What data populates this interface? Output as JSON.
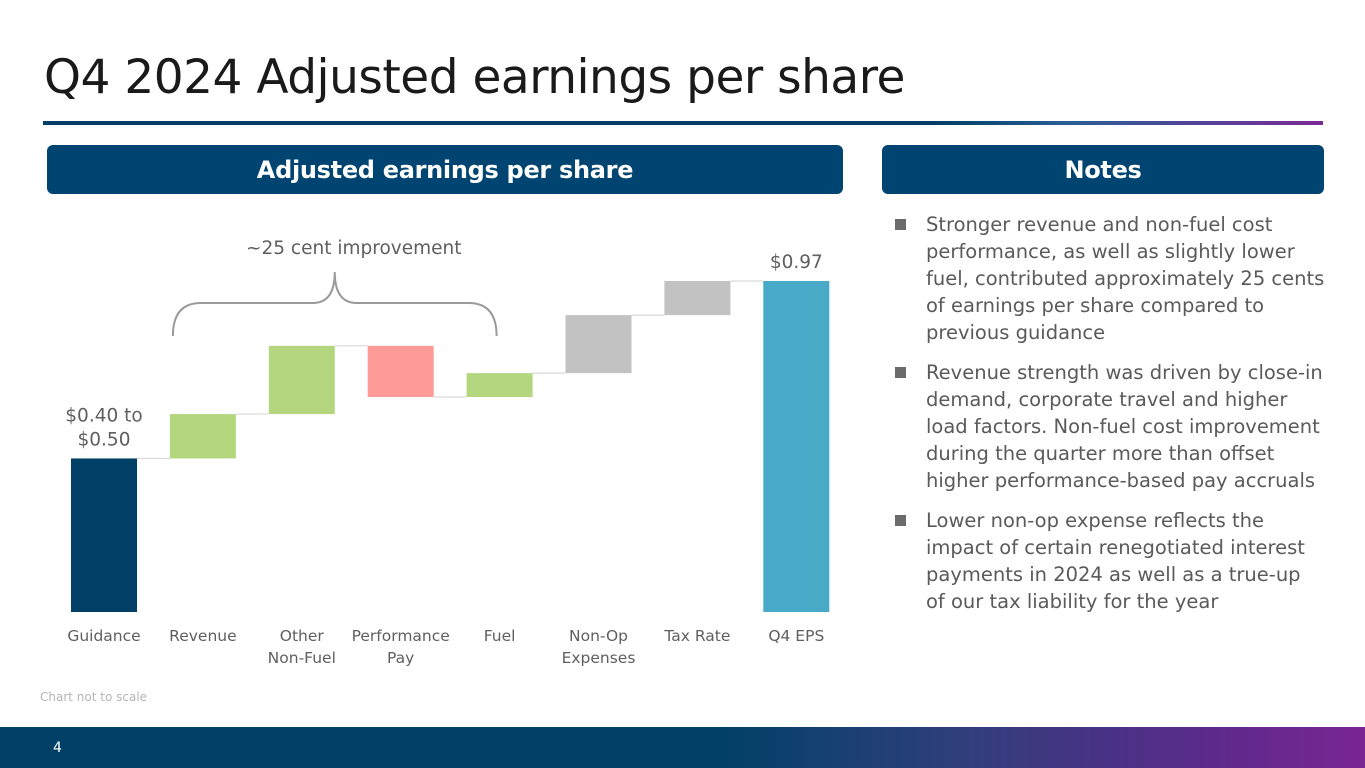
{
  "title": "Q4 2024 Adjusted earnings per share",
  "chart_header": "Adjusted earnings per share",
  "notes_header": "Notes",
  "notes": [
    "Stronger revenue and non-fuel cost performance, as well as slightly lower fuel, contributed approximately 25 cents of earnings per share compared to previous guidance",
    "Revenue strength was driven by close-in demand, corporate travel and higher load factors.  Non-fuel cost improvement during the quarter more than offset higher performance-based pay accruals",
    "Lower non-op expense reflects the impact of certain renegotiated interest payments in 2024 as well as a true-up of our tax liability for the year"
  ],
  "footnote": "Chart not to scale",
  "page_number": "4",
  "chart_data": {
    "type": "waterfall",
    "categories": [
      [
        "Guidance"
      ],
      [
        "Revenue"
      ],
      [
        "Other",
        "Non-Fuel"
      ],
      [
        "Performance",
        "Pay"
      ],
      [
        "Fuel"
      ],
      [
        "Non-Op",
        "Expenses"
      ],
      [
        "Tax Rate"
      ],
      [
        "Q4 EPS"
      ]
    ],
    "segments": [
      {
        "start": 0,
        "end": 0.45,
        "kind": "total"
      },
      {
        "start": 0.45,
        "end": 0.58,
        "kind": "increase"
      },
      {
        "start": 0.58,
        "end": 0.78,
        "kind": "increase"
      },
      {
        "start": 0.78,
        "end": 0.63,
        "kind": "decrease"
      },
      {
        "start": 0.63,
        "end": 0.7,
        "kind": "increase"
      },
      {
        "start": 0.7,
        "end": 0.87,
        "kind": "other"
      },
      {
        "start": 0.87,
        "end": 0.97,
        "kind": "other"
      },
      {
        "start": 0,
        "end": 0.97,
        "kind": "final"
      }
    ],
    "colors": {
      "total": "#003f66",
      "increase": "#b3d67f",
      "decrease": "#fe9b98",
      "other": "#c2c2c2",
      "final": "#48aac7",
      "connector": "#d9d9d9",
      "brace": "#9a9a9a",
      "text": "#5f5f5f"
    },
    "value_labels": [
      {
        "index": 0,
        "lines": [
          "$0.40 to",
          "$0.50"
        ]
      },
      {
        "index": 7,
        "lines": [
          "$0.97"
        ]
      }
    ],
    "annotation": {
      "text": "~25 cent improvement",
      "from_index": 1,
      "to_index": 4
    },
    "ylim": [
      0,
      0.97
    ],
    "note": "Chart not to scale"
  }
}
